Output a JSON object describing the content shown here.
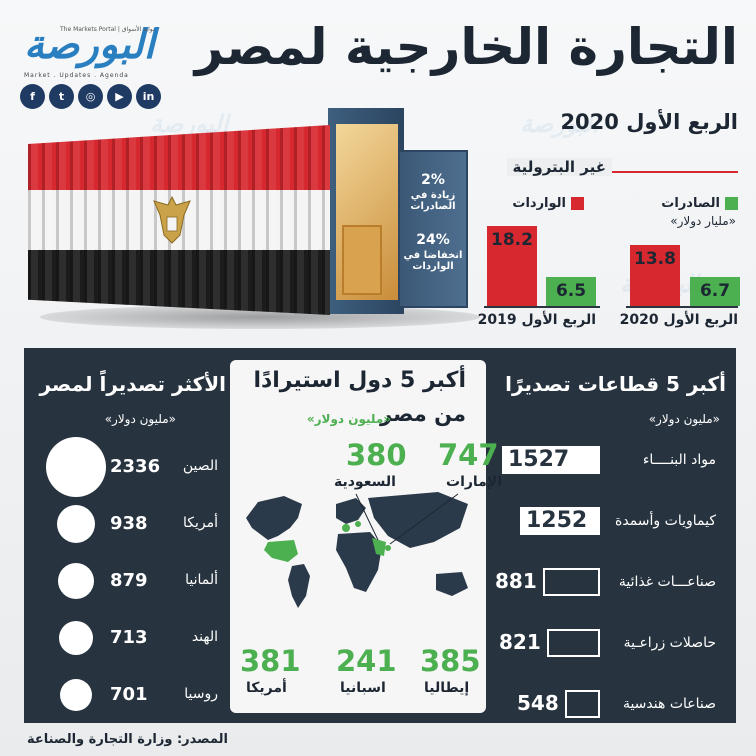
{
  "header": {
    "title": "التجارة الخارجية لمصر",
    "subtitle": "الربع الأول 2020"
  },
  "logo": {
    "name": "البورصة",
    "tagline": "The Markets Portal | بوابة الأسواق",
    "sub": "Market . Updates . Agenda"
  },
  "social": [
    {
      "icon": "facebook-icon",
      "glyph": "f"
    },
    {
      "icon": "twitter-icon",
      "glyph": "t"
    },
    {
      "icon": "instagram-icon",
      "glyph": "◎"
    },
    {
      "icon": "youtube-icon",
      "glyph": "▶"
    },
    {
      "icon": "linkedin-icon",
      "glyph": "in"
    }
  ],
  "container_labels": {
    "exports_change": "2%",
    "exports_change_text": "زيادة في الصادرات",
    "imports_change": "24%",
    "imports_change_text": "انخفاضا في الواردات"
  },
  "colors": {
    "red": "#d7282f",
    "green": "#4caf50",
    "navy": "#27333f",
    "brand_blue": "#2a7fc1"
  },
  "chart_data": [
    {
      "type": "bar",
      "title": "غير البترولية",
      "unit": "«مليار دولار»",
      "categories": [
        "الربع الأول 2020",
        "الربع الأول 2019"
      ],
      "series": [
        {
          "name": "الصادرات",
          "color": "#4caf50",
          "values": [
            6.7,
            6.5
          ]
        },
        {
          "name": "الواردات",
          "color": "#d7282f",
          "values": [
            13.8,
            18.2
          ]
        }
      ]
    },
    {
      "type": "bar",
      "title": "أكبر 5 قطاعات تصديرًا",
      "unit": "«مليون دولار»",
      "categories": [
        "مواد البنــــاء",
        "كيماويات وأسمدة",
        "صناعـــات غذائية",
        "حاصلات زراعـية",
        "صناعات هندسية"
      ],
      "values": [
        1527,
        1252,
        881,
        821,
        548
      ]
    },
    {
      "type": "table",
      "title_line1": "أكبر 5 دول استيرادًا",
      "title_line2": "من مصر",
      "unit": "«مليون دولار»",
      "rows": [
        {
          "country": "الإمارات",
          "value": 747
        },
        {
          "country": "السعودية",
          "value": 380
        },
        {
          "country": "إيطاليا",
          "value": 385
        },
        {
          "country": "اسبانيا",
          "value": 241
        },
        {
          "country": "أمريكا",
          "value": 381
        }
      ]
    },
    {
      "type": "scatter",
      "title": "الأكثر تصديراً لمصر",
      "unit": "«مليون دولار»",
      "categories": [
        "الصين",
        "أمريكا",
        "ألمانيا",
        "الهند",
        "روسيا"
      ],
      "values": [
        2336,
        938,
        879,
        713,
        701
      ]
    }
  ],
  "source": "المصدر: وزارة التجارة والصناعة"
}
